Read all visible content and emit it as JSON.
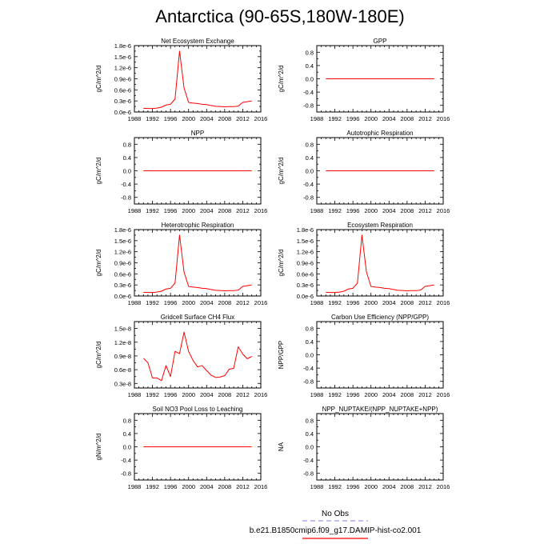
{
  "page": {
    "title": "Antarctica (90-65S,180W-180E)"
  },
  "legend": {
    "obs_label": "No Obs",
    "model_label": "b.e21.B1850cmip6.f09_g17.DAMIP-hist-co2.001",
    "obs_color": "#9999ee",
    "model_color": "#ff0000"
  },
  "chart_data": [
    {
      "type": "line",
      "title": "Net Ecosystem Exchange",
      "ylabel": "gC/m^2/d",
      "xlim": [
        1988,
        2016
      ],
      "ylim": [
        0,
        1.8e-06
      ],
      "xticks": [
        1988,
        1992,
        1996,
        2000,
        2004,
        2008,
        2012,
        2016
      ],
      "yticks": [
        0,
        3e-07,
        6e-07,
        9e-07,
        1.2e-06,
        1.5e-06,
        1.8e-06
      ],
      "ytick_labels": [
        "0.0e-6",
        "0.3e-6",
        "0.6e-6",
        "0.9e-6",
        "1.2e-6",
        "1.5e-6",
        "1.8e-6"
      ],
      "series": [
        {
          "color": "#ff0000",
          "x": [
            1990,
            1991,
            1992,
            1993,
            1994,
            1995,
            1996,
            1997,
            1998,
            1999,
            2000,
            2001,
            2002,
            2003,
            2004,
            2005,
            2006,
            2007,
            2008,
            2009,
            2010,
            2011,
            2012,
            2013,
            2014
          ],
          "y": [
            1e-07,
            9.5e-08,
            9.5e-08,
            1.05e-07,
            1.3e-07,
            1.9e-07,
            2.1e-07,
            3.5e-07,
            1.65e-06,
            6.5e-07,
            2.6e-07,
            2.4e-07,
            2.3e-07,
            2.1e-07,
            2e-07,
            1.75e-07,
            1.55e-07,
            1.5e-07,
            1.4e-07,
            1.45e-07,
            1.45e-07,
            1.6e-07,
            2.6e-07,
            2.8e-07,
            3e-07
          ]
        }
      ]
    },
    {
      "type": "line",
      "title": "GPP",
      "ylabel": "gC/m^2/d",
      "xlim": [
        1988,
        2016
      ],
      "ylim": [
        -1,
        1
      ],
      "xticks": [
        1988,
        1992,
        1996,
        2000,
        2004,
        2008,
        2012,
        2016
      ],
      "yticks": [
        -0.8,
        -0.4,
        0,
        0.4,
        0.8
      ],
      "ytick_labels": [
        "-0.8",
        "-0.4",
        "0.0",
        "0.4",
        "0.8"
      ],
      "series": [
        {
          "color": "#ff0000",
          "x": [
            1990,
            2014
          ],
          "y": [
            0,
            0
          ]
        }
      ]
    },
    {
      "type": "line",
      "title": "NPP",
      "ylabel": "gC/m^2/d",
      "xlim": [
        1988,
        2016
      ],
      "ylim": [
        -1,
        1
      ],
      "xticks": [
        1988,
        1992,
        1996,
        2000,
        2004,
        2008,
        2012,
        2016
      ],
      "yticks": [
        -0.8,
        -0.4,
        0,
        0.4,
        0.8
      ],
      "ytick_labels": [
        "-0.8",
        "-0.4",
        "0.0",
        "0.4",
        "0.8"
      ],
      "series": [
        {
          "color": "#ff0000",
          "x": [
            1990,
            2014
          ],
          "y": [
            0,
            0
          ]
        }
      ]
    },
    {
      "type": "line",
      "title": "Autotrophic Respiration",
      "ylabel": "gC/m^2/d",
      "xlim": [
        1988,
        2016
      ],
      "ylim": [
        -1,
        1
      ],
      "xticks": [
        1988,
        1992,
        1996,
        2000,
        2004,
        2008,
        2012,
        2016
      ],
      "yticks": [
        -0.8,
        -0.4,
        0,
        0.4,
        0.8
      ],
      "ytick_labels": [
        "-0.8",
        "-0.4",
        "0.0",
        "0.4",
        "0.8"
      ],
      "series": [
        {
          "color": "#ff0000",
          "x": [
            1990,
            2014
          ],
          "y": [
            0,
            0
          ]
        }
      ]
    },
    {
      "type": "line",
      "title": "Heterotrophic Respiration",
      "ylabel": "gC/m^2/d",
      "xlim": [
        1988,
        2016
      ],
      "ylim": [
        0,
        1.8e-06
      ],
      "xticks": [
        1988,
        1992,
        1996,
        2000,
        2004,
        2008,
        2012,
        2016
      ],
      "yticks": [
        0,
        3e-07,
        6e-07,
        9e-07,
        1.2e-06,
        1.5e-06,
        1.8e-06
      ],
      "ytick_labels": [
        "0.0e-6",
        "0.3e-6",
        "0.6e-6",
        "0.9e-6",
        "1.2e-6",
        "1.5e-6",
        "1.8e-6"
      ],
      "series": [
        {
          "color": "#ff0000",
          "x": [
            1990,
            1991,
            1992,
            1993,
            1994,
            1995,
            1996,
            1997,
            1998,
            1999,
            2000,
            2001,
            2002,
            2003,
            2004,
            2005,
            2006,
            2007,
            2008,
            2009,
            2010,
            2011,
            2012,
            2013,
            2014
          ],
          "y": [
            1e-07,
            9.5e-08,
            9.5e-08,
            1.05e-07,
            1.3e-07,
            1.9e-07,
            2.1e-07,
            3.5e-07,
            1.65e-06,
            6.5e-07,
            2.6e-07,
            2.4e-07,
            2.3e-07,
            2.1e-07,
            2e-07,
            1.75e-07,
            1.55e-07,
            1.5e-07,
            1.4e-07,
            1.45e-07,
            1.45e-07,
            1.6e-07,
            2.6e-07,
            2.8e-07,
            3e-07
          ]
        }
      ]
    },
    {
      "type": "line",
      "title": "Ecosystem Respiration",
      "ylabel": "gC/m^2/d",
      "xlim": [
        1988,
        2016
      ],
      "ylim": [
        0,
        1.8e-06
      ],
      "xticks": [
        1988,
        1992,
        1996,
        2000,
        2004,
        2008,
        2012,
        2016
      ],
      "yticks": [
        0,
        3e-07,
        6e-07,
        9e-07,
        1.2e-06,
        1.5e-06,
        1.8e-06
      ],
      "ytick_labels": [
        "0.0e-6",
        "0.3e-6",
        "0.6e-6",
        "0.9e-6",
        "1.2e-6",
        "1.5e-6",
        "1.8e-6"
      ],
      "series": [
        {
          "color": "#ff0000",
          "x": [
            1990,
            1991,
            1992,
            1993,
            1994,
            1995,
            1996,
            1997,
            1998,
            1999,
            2000,
            2001,
            2002,
            2003,
            2004,
            2005,
            2006,
            2007,
            2008,
            2009,
            2010,
            2011,
            2012,
            2013,
            2014
          ],
          "y": [
            1e-07,
            9.5e-08,
            9.5e-08,
            1.05e-07,
            1.3e-07,
            1.9e-07,
            2.1e-07,
            3.5e-07,
            1.65e-06,
            6.5e-07,
            2.6e-07,
            2.4e-07,
            2.3e-07,
            2.1e-07,
            2e-07,
            1.75e-07,
            1.55e-07,
            1.5e-07,
            1.4e-07,
            1.45e-07,
            1.45e-07,
            1.6e-07,
            2.6e-07,
            2.8e-07,
            3e-07
          ]
        }
      ]
    },
    {
      "type": "line",
      "title": "Gridcell Surface CH4 Flux",
      "ylabel": "gC/m^2/d",
      "xlim": [
        1988,
        2016
      ],
      "ylim": [
        2e-09,
        1.65e-08
      ],
      "xticks": [
        1988,
        1992,
        1996,
        2000,
        2004,
        2008,
        2012,
        2016
      ],
      "yticks": [
        3e-09,
        6e-09,
        9e-09,
        1.2e-08,
        1.5e-08
      ],
      "ytick_labels": [
        "0.3e-8",
        "0.6e-8",
        "0.9e-8",
        "1.2e-8",
        "1.5e-8"
      ],
      "series": [
        {
          "color": "#ff0000",
          "x": [
            1990,
            1991,
            1992,
            1993,
            1994,
            1995,
            1996,
            1997,
            1998,
            1999,
            2000,
            2001,
            2002,
            2003,
            2004,
            2005,
            2006,
            2007,
            2008,
            2009,
            2010,
            2011,
            2012,
            2013,
            2014
          ],
          "y": [
            8.5e-09,
            7.5e-09,
            4.2e-09,
            4.2e-09,
            3.6e-09,
            6.9e-09,
            4.5e-09,
            1e-08,
            9.5e-09,
            1.42e-08,
            1e-08,
            8e-09,
            6.6e-09,
            6.9e-09,
            5.8e-09,
            4.8e-09,
            4.3e-09,
            4.4e-09,
            4.7e-09,
            6.1e-09,
            6.3e-09,
            1.1e-08,
            9.4e-09,
            8.4e-09,
            8.9e-09
          ]
        }
      ]
    },
    {
      "type": "line",
      "title": "Carbon Use Efficiency (NPP/GPP)",
      "ylabel": "NPP/GPP",
      "xlim": [
        1988,
        2016
      ],
      "ylim": [
        -1,
        1
      ],
      "xticks": [
        1988,
        1992,
        1996,
        2000,
        2004,
        2008,
        2012,
        2016
      ],
      "yticks": [
        -0.8,
        -0.4,
        0,
        0.4,
        0.8
      ],
      "ytick_labels": [
        "-0.8",
        "-0.4",
        "0.0",
        "0.4",
        "0.8"
      ],
      "series": []
    },
    {
      "type": "line",
      "title": "Soil NO3 Pool Loss to Leaching",
      "ylabel": "gN/m^2/d",
      "xlim": [
        1988,
        2016
      ],
      "ylim": [
        -1,
        1
      ],
      "xticks": [
        1988,
        1992,
        1996,
        2000,
        2004,
        2008,
        2012,
        2016
      ],
      "yticks": [
        -0.8,
        -0.4,
        0,
        0.4,
        0.8
      ],
      "ytick_labels": [
        "-0.8",
        "-0.4",
        "0.0",
        "0.4",
        "0.8"
      ],
      "series": [
        {
          "color": "#ff0000",
          "x": [
            1990,
            2014
          ],
          "y": [
            0,
            0
          ]
        }
      ]
    },
    {
      "type": "line",
      "title": "NPP_NUPTAKE/(NPP_NUPTAKE+NPP)",
      "ylabel": "NA",
      "xlim": [
        1988,
        2016
      ],
      "ylim": [
        -1,
        1
      ],
      "xticks": [
        1988,
        1992,
        1996,
        2000,
        2004,
        2008,
        2012,
        2016
      ],
      "yticks": [
        -0.8,
        -0.4,
        0,
        0.4,
        0.8
      ],
      "ytick_labels": [
        "-0.8",
        "-0.4",
        "0.0",
        "0.4",
        "0.8"
      ],
      "series": []
    }
  ]
}
